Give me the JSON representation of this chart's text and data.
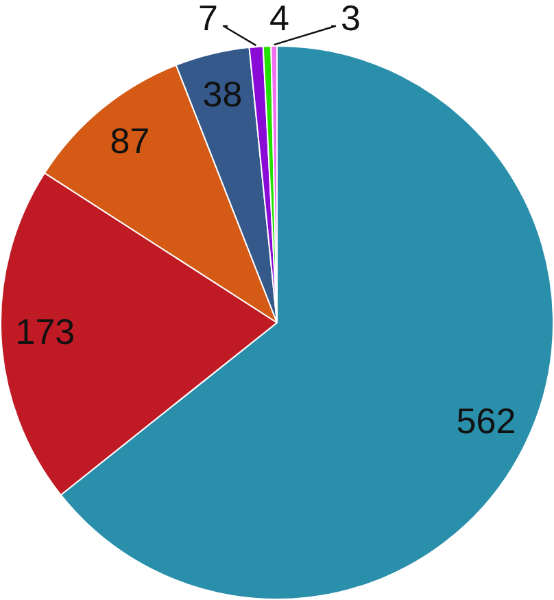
{
  "chart_data": {
    "type": "pie",
    "categories": [
      null,
      null,
      null,
      null,
      null,
      null,
      null
    ],
    "values": [
      562,
      173,
      87,
      38,
      7,
      4,
      3
    ],
    "colors": [
      "#2a8fab",
      "#c01a24",
      "#d45a16",
      "#34598a",
      "#8a0ad6",
      "#22e000",
      "#f070f0"
    ],
    "data_labels": true
  }
}
